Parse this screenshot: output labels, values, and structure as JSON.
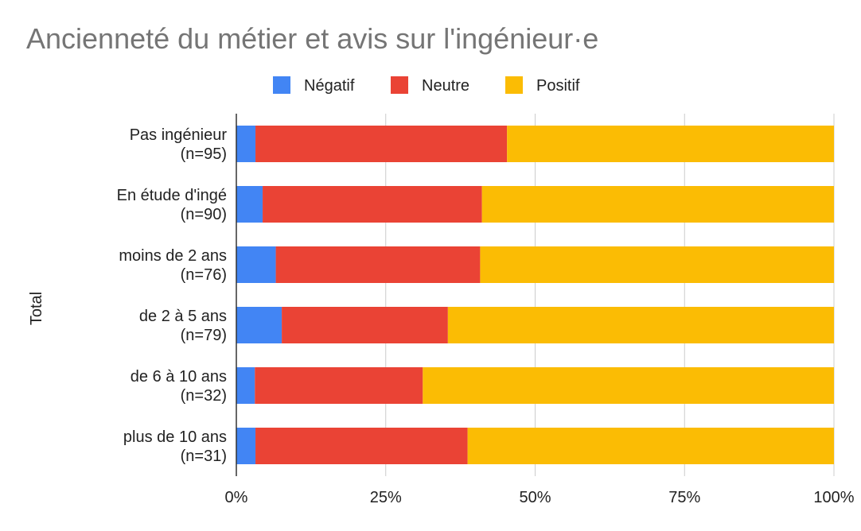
{
  "chart_data": {
    "type": "bar",
    "orientation": "horizontal",
    "stacked": "percent",
    "title": "Ancienneté du métier et avis sur l'ingénieur·e",
    "ylabel": "Total",
    "xlabel": "",
    "xlim": [
      0,
      100
    ],
    "x_ticks": [
      "0%",
      "25%",
      "50%",
      "75%",
      "100%"
    ],
    "grid": true,
    "legend_position": "top",
    "categories": [
      [
        "Pas ingénieur",
        "(n=95)"
      ],
      [
        "En étude d'ingé",
        "(n=90)"
      ],
      [
        "moins de 2 ans",
        "(n=76)"
      ],
      [
        "de 2 à 5 ans",
        "(n=79)"
      ],
      [
        "de 6 à 10 ans",
        "(n=32)"
      ],
      [
        "plus de 10 ans",
        "(n=31)"
      ]
    ],
    "series": [
      {
        "name": "Négatif",
        "color": "#4285f4",
        "values": [
          3.2,
          4.4,
          6.6,
          7.6,
          3.1,
          3.2
        ]
      },
      {
        "name": "Neutre",
        "color": "#ea4335",
        "values": [
          42.1,
          36.7,
          34.2,
          27.8,
          28.1,
          35.5
        ]
      },
      {
        "name": "Positif",
        "color": "#fbbc04",
        "values": [
          54.7,
          58.9,
          59.2,
          64.6,
          68.8,
          61.3
        ]
      }
    ]
  }
}
